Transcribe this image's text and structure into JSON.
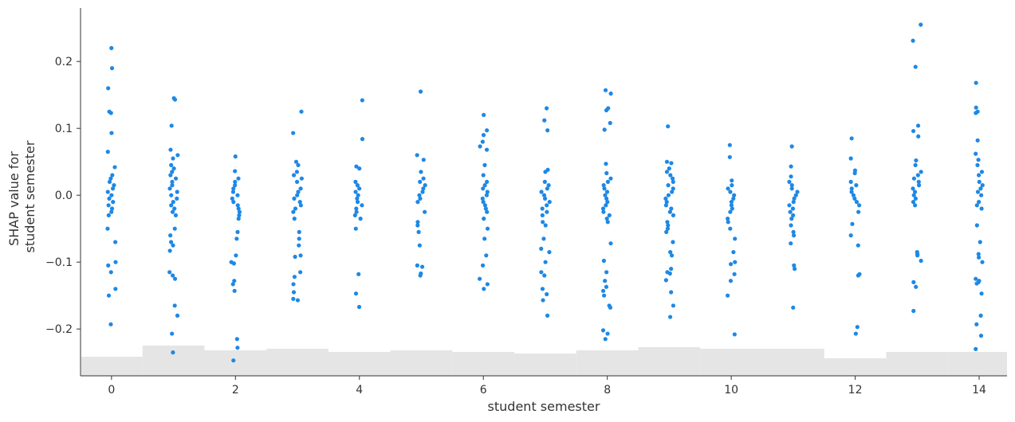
{
  "chart_data": {
    "type": "scatter",
    "title": "",
    "xlabel": "student semester",
    "ylabel": [
      "SHAP value for",
      "student semester"
    ],
    "xlim": [
      -0.5,
      14.45
    ],
    "ylim": [
      -0.27,
      0.28
    ],
    "x_ticks": [
      0,
      2,
      4,
      6,
      8,
      10,
      12,
      14
    ],
    "x_tick_labels": [
      "0",
      "2",
      "4",
      "6",
      "8",
      "10",
      "12",
      "14"
    ],
    "y_ticks": [
      -0.2,
      -0.1,
      0.0,
      0.1,
      0.2
    ],
    "y_tick_labels": [
      "−0.2",
      "−0.1",
      "0.0",
      "0.1",
      "0.2"
    ],
    "grid": false,
    "point_color": "#1e88e5",
    "histogram_color": "#e5e5e5",
    "background_histogram": {
      "note_free": true,
      "bins": [
        0,
        1,
        2,
        3,
        4,
        5,
        6,
        7,
        8,
        9,
        10,
        11,
        12,
        13,
        14
      ],
      "relative_heights": [
        0.12,
        0.19,
        0.16,
        0.17,
        0.15,
        0.16,
        0.15,
        0.14,
        0.16,
        0.18,
        0.17,
        0.17,
        0.11,
        0.15,
        0.15
      ]
    },
    "series": [
      {
        "x": 0,
        "values": [
          0.22,
          0.19,
          0.16,
          0.125,
          0.123,
          0.093,
          0.065,
          0.042,
          0.03,
          0.025,
          0.02,
          0.015,
          0.01,
          0.005,
          0.0,
          -0.005,
          -0.01,
          -0.015,
          -0.02,
          -0.025,
          -0.03,
          -0.05,
          -0.07,
          -0.1,
          -0.105,
          -0.115,
          -0.14,
          -0.15,
          -0.193
        ]
      },
      {
        "x": 1,
        "values": [
          0.145,
          0.143,
          0.104,
          0.068,
          0.06,
          0.055,
          0.045,
          0.04,
          0.035,
          0.03,
          0.025,
          0.02,
          0.015,
          0.01,
          0.005,
          0.0,
          -0.005,
          -0.01,
          -0.015,
          -0.02,
          -0.025,
          -0.03,
          -0.05,
          -0.06,
          -0.07,
          -0.075,
          -0.083,
          -0.115,
          -0.12,
          -0.125,
          -0.165,
          -0.18,
          -0.207,
          -0.235
        ]
      },
      {
        "x": 2,
        "values": [
          0.058,
          0.036,
          0.025,
          0.02,
          0.015,
          0.01,
          0.005,
          0.0,
          -0.005,
          -0.01,
          -0.015,
          -0.02,
          -0.025,
          -0.03,
          -0.035,
          -0.055,
          -0.065,
          -0.09,
          -0.1,
          -0.102,
          -0.128,
          -0.133,
          -0.143,
          -0.215,
          -0.228,
          -0.247
        ]
      },
      {
        "x": 3,
        "values": [
          0.125,
          0.093,
          0.05,
          0.045,
          0.035,
          0.03,
          0.025,
          0.02,
          0.01,
          0.005,
          0.0,
          -0.005,
          -0.01,
          -0.015,
          -0.02,
          -0.025,
          -0.035,
          -0.055,
          -0.065,
          -0.075,
          -0.09,
          -0.092,
          -0.115,
          -0.122,
          -0.133,
          -0.145,
          -0.155,
          -0.157
        ]
      },
      {
        "x": 4,
        "values": [
          0.142,
          0.084,
          0.043,
          0.04,
          0.02,
          0.015,
          0.01,
          0.005,
          0.0,
          -0.005,
          -0.01,
          -0.015,
          -0.02,
          -0.025,
          -0.03,
          -0.035,
          -0.05,
          -0.118,
          -0.147,
          -0.167
        ]
      },
      {
        "x": 5,
        "values": [
          0.155,
          0.06,
          0.053,
          0.035,
          0.025,
          0.02,
          0.015,
          0.01,
          0.005,
          0.0,
          -0.005,
          -0.01,
          -0.025,
          -0.04,
          -0.045,
          -0.055,
          -0.075,
          -0.105,
          -0.107,
          -0.117,
          -0.12
        ]
      },
      {
        "x": 6,
        "values": [
          0.12,
          0.097,
          0.09,
          0.08,
          0.073,
          0.068,
          0.045,
          0.03,
          0.02,
          0.015,
          0.01,
          0.005,
          0.0,
          -0.005,
          -0.01,
          -0.015,
          -0.02,
          -0.025,
          -0.035,
          -0.05,
          -0.065,
          -0.09,
          -0.105,
          -0.125,
          -0.133,
          -0.14
        ]
      },
      {
        "x": 7,
        "values": [
          0.13,
          0.112,
          0.097,
          0.038,
          0.035,
          0.02,
          0.015,
          0.01,
          0.005,
          0.0,
          -0.005,
          -0.01,
          -0.015,
          -0.02,
          -0.025,
          -0.03,
          -0.04,
          -0.045,
          -0.065,
          -0.08,
          -0.085,
          -0.1,
          -0.115,
          -0.12,
          -0.14,
          -0.148,
          -0.157,
          -0.18
        ]
      },
      {
        "x": 8,
        "values": [
          0.157,
          0.152,
          0.13,
          0.127,
          0.108,
          0.098,
          0.047,
          0.033,
          0.025,
          0.02,
          0.015,
          0.01,
          0.005,
          0.0,
          -0.005,
          -0.01,
          -0.015,
          -0.02,
          -0.025,
          -0.03,
          -0.035,
          -0.04,
          -0.072,
          -0.098,
          -0.115,
          -0.128,
          -0.137,
          -0.143,
          -0.15,
          -0.165,
          -0.168,
          -0.202,
          -0.207,
          -0.215
        ]
      },
      {
        "x": 9,
        "values": [
          0.103,
          0.05,
          0.048,
          0.04,
          0.035,
          0.03,
          0.025,
          0.02,
          0.015,
          0.01,
          0.005,
          0.0,
          -0.005,
          -0.01,
          -0.015,
          -0.02,
          -0.025,
          -0.03,
          -0.04,
          -0.045,
          -0.05,
          -0.055,
          -0.07,
          -0.085,
          -0.09,
          -0.11,
          -0.115,
          -0.117,
          -0.127,
          -0.145,
          -0.165,
          -0.182
        ]
      },
      {
        "x": 10,
        "values": [
          0.075,
          0.057,
          0.022,
          0.015,
          0.01,
          0.005,
          0.0,
          -0.005,
          -0.01,
          -0.015,
          -0.02,
          -0.025,
          -0.035,
          -0.04,
          -0.05,
          -0.065,
          -0.085,
          -0.1,
          -0.103,
          -0.118,
          -0.128,
          -0.15,
          -0.208
        ]
      },
      {
        "x": 11,
        "values": [
          0.073,
          0.043,
          0.028,
          0.02,
          0.015,
          0.01,
          0.005,
          0.0,
          -0.005,
          -0.01,
          -0.015,
          -0.02,
          -0.025,
          -0.03,
          -0.035,
          -0.045,
          -0.055,
          -0.06,
          -0.072,
          -0.105,
          -0.11,
          -0.168
        ]
      },
      {
        "x": 12,
        "values": [
          0.085,
          0.055,
          0.037,
          0.033,
          0.02,
          0.015,
          0.01,
          0.005,
          0.0,
          -0.005,
          -0.01,
          -0.015,
          -0.025,
          -0.043,
          -0.06,
          -0.075,
          -0.118,
          -0.12,
          -0.197,
          -0.207
        ]
      },
      {
        "x": 13,
        "values": [
          0.255,
          0.231,
          0.192,
          0.104,
          0.096,
          0.088,
          0.052,
          0.045,
          0.035,
          0.03,
          0.025,
          0.02,
          0.015,
          0.01,
          0.005,
          0.0,
          -0.005,
          -0.01,
          -0.015,
          -0.085,
          -0.088,
          -0.09,
          -0.098,
          -0.13,
          -0.137,
          -0.173
        ]
      },
      {
        "x": 14,
        "values": [
          0.168,
          0.131,
          0.125,
          0.123,
          0.082,
          0.062,
          0.053,
          0.045,
          0.035,
          0.03,
          0.02,
          0.015,
          0.01,
          0.005,
          0.0,
          -0.01,
          -0.015,
          -0.02,
          -0.045,
          -0.07,
          -0.088,
          -0.093,
          -0.1,
          -0.125,
          -0.128,
          -0.13,
          -0.132,
          -0.147,
          -0.18,
          -0.193,
          -0.21,
          -0.23
        ]
      }
    ]
  }
}
